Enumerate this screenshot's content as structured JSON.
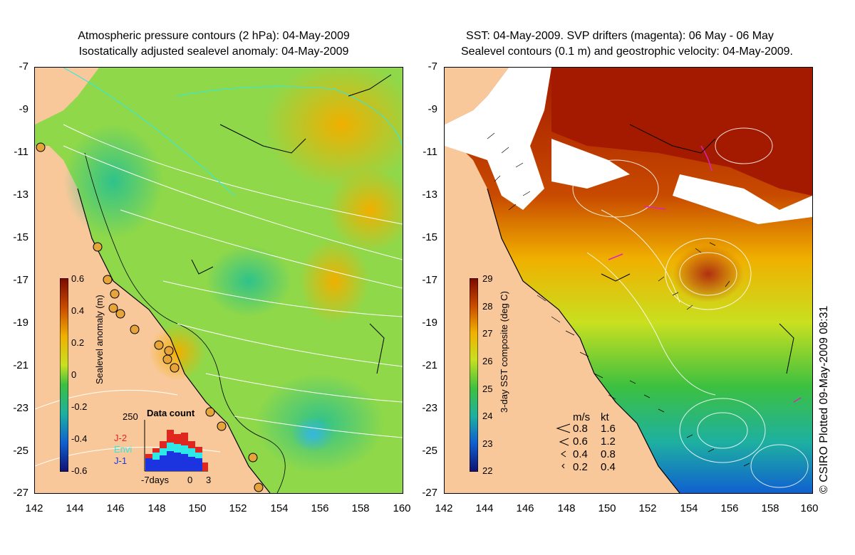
{
  "left_panel": {
    "title_line1": "Atmospheric pressure contours (2 hPa): 04-May-2009",
    "title_line2": "Isostatically adjusted sealevel anomaly: 04-May-2009",
    "colorbar": {
      "label": "Sealevel anomaly (m)",
      "ticks": [
        "0.6",
        "0.4",
        "0.2",
        "0",
        "-0.2",
        "-0.4",
        "-0.6"
      ]
    },
    "data_count": {
      "title": "Data count",
      "ymax_label": "250",
      "x_left_label": "-7days",
      "x_mid_label": "0",
      "x_right_label": "3",
      "series": [
        {
          "name": "J-2",
          "color": "#e0271f"
        },
        {
          "name": "Envi",
          "color": "#2ee8e8"
        },
        {
          "name": "J-1",
          "color": "#1b34e0"
        }
      ]
    }
  },
  "right_panel": {
    "title_line1": "SST: 04-May-2009. SVP drifters (magenta): 06 May - 06 May",
    "title_line2": "Sealevel contours (0.1 m) and geostrophic velocity: 04-May-2009.",
    "colorbar": {
      "label": "3-day SST composite (deg C)",
      "ticks": [
        "29",
        "28",
        "27",
        "26",
        "25",
        "24",
        "23",
        "22"
      ]
    },
    "velocity_legend": {
      "header_ms": "m/s",
      "header_kt": "kt",
      "rows": [
        {
          "ms": "0.8",
          "kt": "1.6"
        },
        {
          "ms": "0.6",
          "kt": "1.2"
        },
        {
          "ms": "0.4",
          "kt": "0.8"
        },
        {
          "ms": "0.2",
          "kt": "0.4"
        }
      ]
    }
  },
  "axes": {
    "y_labels": [
      "-7",
      "-9",
      "-11",
      "-13",
      "-15",
      "-17",
      "-19",
      "-21",
      "-23",
      "-25",
      "-27"
    ],
    "x_labels": [
      "142",
      "144",
      "146",
      "148",
      "150",
      "152",
      "154",
      "156",
      "158",
      "160"
    ]
  },
  "copyright": "© CSIRO Plotted 09-May-2009 08:31",
  "colors": {
    "land": "#f9c89a",
    "sea_green": "#7ed64a",
    "sst_hot": "#a31a00"
  }
}
